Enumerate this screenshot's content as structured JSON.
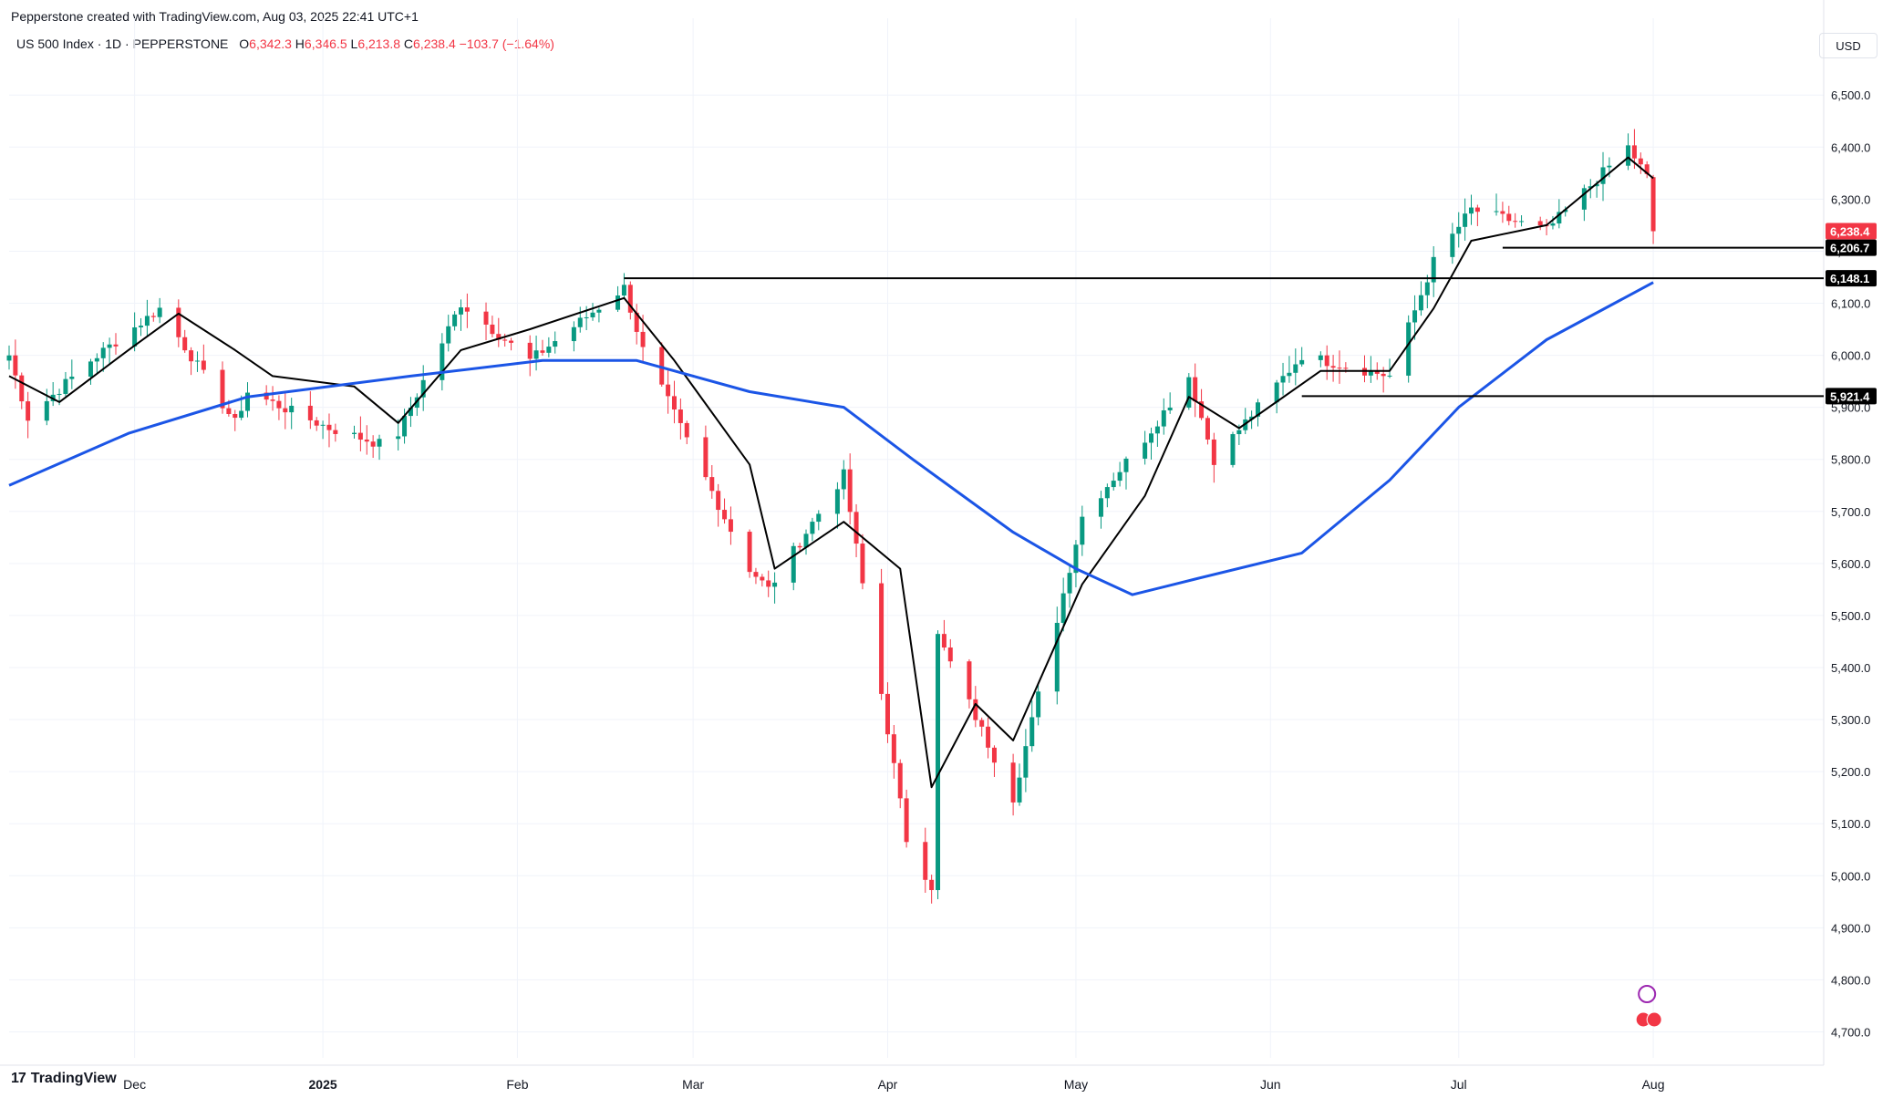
{
  "header": {
    "attribution": "Pepperstone created with TradingView.com, Aug 03, 2025 22:41 UTC+1"
  },
  "legend": {
    "symbol": "US 500 Index · 1D · PEPPERSTONE",
    "o_label": "O",
    "o_value": "6,342.3",
    "h_label": "H",
    "h_value": "6,346.5",
    "l_label": "L",
    "l_value": "6,213.8",
    "c_label": "C",
    "c_value": "6,238.4",
    "change": "−103.7 (−1.64%)"
  },
  "currency": "USD",
  "footer": {
    "brand": "TradingView",
    "brand_mark": "17"
  },
  "colors": {
    "up": "#089981",
    "down": "#f23645",
    "ma_fast": "#000000",
    "ma_slow": "#1b55e6",
    "grid": "#f0f3fa",
    "level_line": "#000000",
    "last_price_tag": "#f23645"
  },
  "chart_data": {
    "type": "candlestick",
    "y_axis": {
      "range": [
        4650,
        6560
      ],
      "ticks": [
        4700,
        4800,
        4900,
        5000,
        5100,
        5200,
        5300,
        5400,
        5500,
        5600,
        5700,
        5800,
        5900,
        6000,
        6100,
        6200,
        6300,
        6400,
        6500
      ],
      "tick_labels": [
        "4,700.0",
        "4,800.0",
        "4,900.0",
        "5,000.0",
        "5,100.0",
        "5,200.0",
        "5,300.0",
        "5,400.0",
        "5,500.0",
        "5,600.0",
        "5,700.0",
        "5,800.0",
        "5,900.0",
        "6,000.0",
        "6,100.0",
        "6,200.0",
        "6,300.0",
        "6,400.0",
        "6,500.0"
      ]
    },
    "x_axis": {
      "range": [
        "2024-11-12",
        "2025-08-27"
      ],
      "ticks": [
        {
          "date": "2024-12-02",
          "label": "Dec",
          "bold": false
        },
        {
          "date": "2025-01-01",
          "label": "2025",
          "bold": true
        },
        {
          "date": "2025-02-01",
          "label": "Feb",
          "bold": false
        },
        {
          "date": "2025-03-01",
          "label": "Mar",
          "bold": false
        },
        {
          "date": "2025-04-01",
          "label": "Apr",
          "bold": false
        },
        {
          "date": "2025-05-01",
          "label": "May",
          "bold": false
        },
        {
          "date": "2025-06-01",
          "label": "Jun",
          "bold": false
        },
        {
          "date": "2025-07-01",
          "label": "Jul",
          "bold": false
        },
        {
          "date": "2025-08-01",
          "label": "Aug",
          "bold": false
        }
      ]
    },
    "key_points": [
      {
        "date": "2024-11-12",
        "close": 6000
      },
      {
        "date": "2024-11-15",
        "close": 5880
      },
      {
        "date": "2024-11-25",
        "close": 5990
      },
      {
        "date": "2024-12-06",
        "close": 6090
      },
      {
        "date": "2024-12-18",
        "close": 5870
      },
      {
        "date": "2024-12-20",
        "close": 5930
      },
      {
        "date": "2025-01-02",
        "close": 5860
      },
      {
        "date": "2025-01-10",
        "close": 5830
      },
      {
        "date": "2025-01-13",
        "close": 5850
      },
      {
        "date": "2025-01-23",
        "close": 6100
      },
      {
        "date": "2025-02-03",
        "close": 5990
      },
      {
        "date": "2025-02-18",
        "close": 6130
      },
      {
        "date": "2025-02-21",
        "close": 6010
      },
      {
        "date": "2025-03-10",
        "close": 5590
      },
      {
        "date": "2025-03-13",
        "close": 5550
      },
      {
        "date": "2025-03-25",
        "close": 5770
      },
      {
        "date": "2025-04-04",
        "close": 5070
      },
      {
        "date": "2025-04-08",
        "close": 4980
      },
      {
        "date": "2025-04-09",
        "close": 5460
      },
      {
        "date": "2025-04-21",
        "close": 5150
      },
      {
        "date": "2025-05-02",
        "close": 5690
      },
      {
        "date": "2025-05-12",
        "close": 5840
      },
      {
        "date": "2025-05-19",
        "close": 5960
      },
      {
        "date": "2025-05-23",
        "close": 5800
      },
      {
        "date": "2025-06-06",
        "close": 6000
      },
      {
        "date": "2025-06-13",
        "close": 5980
      },
      {
        "date": "2025-06-20",
        "close": 5960
      },
      {
        "date": "2025-06-27",
        "close": 6180
      },
      {
        "date": "2025-07-03",
        "close": 6280
      },
      {
        "date": "2025-07-15",
        "close": 6240
      },
      {
        "date": "2025-07-28",
        "close": 6400
      },
      {
        "date": "2025-07-31",
        "close": 6342
      },
      {
        "date": "2025-08-01",
        "open": 6342.3,
        "high": 6346.5,
        "low": 6213.8,
        "close": 6238.4
      }
    ],
    "moving_averages": [
      {
        "name": "fast",
        "color": "#000000",
        "points": [
          [
            "2024-11-12",
            5960
          ],
          [
            "2024-11-20",
            5910
          ],
          [
            "2024-12-01",
            6010
          ],
          [
            "2024-12-09",
            6080
          ],
          [
            "2024-12-18",
            6010
          ],
          [
            "2024-12-24",
            5960
          ],
          [
            "2025-01-06",
            5940
          ],
          [
            "2025-01-13",
            5870
          ],
          [
            "2025-01-23",
            6010
          ],
          [
            "2025-02-03",
            6050
          ],
          [
            "2025-02-18",
            6110
          ],
          [
            "2025-02-26",
            5990
          ],
          [
            "2025-03-10",
            5790
          ],
          [
            "2025-03-14",
            5590
          ],
          [
            "2025-03-25",
            5680
          ],
          [
            "2025-04-03",
            5590
          ],
          [
            "2025-04-08",
            5170
          ],
          [
            "2025-04-15",
            5330
          ],
          [
            "2025-04-21",
            5260
          ],
          [
            "2025-05-02",
            5560
          ],
          [
            "2025-05-12",
            5730
          ],
          [
            "2025-05-19",
            5920
          ],
          [
            "2025-05-27",
            5860
          ],
          [
            "2025-06-09",
            5970
          ],
          [
            "2025-06-20",
            5970
          ],
          [
            "2025-06-27",
            6090
          ],
          [
            "2025-07-03",
            6220
          ],
          [
            "2025-07-15",
            6250
          ],
          [
            "2025-07-28",
            6380
          ],
          [
            "2025-08-01",
            6340
          ]
        ]
      },
      {
        "name": "slow",
        "color": "#1b55e6",
        "points": [
          [
            "2024-11-12",
            5750
          ],
          [
            "2024-12-01",
            5850
          ],
          [
            "2024-12-20",
            5920
          ],
          [
            "2025-01-15",
            5960
          ],
          [
            "2025-02-05",
            5990
          ],
          [
            "2025-02-20",
            5990
          ],
          [
            "2025-03-10",
            5930
          ],
          [
            "2025-03-25",
            5900
          ],
          [
            "2025-04-05",
            5800
          ],
          [
            "2025-04-21",
            5660
          ],
          [
            "2025-05-01",
            5590
          ],
          [
            "2025-05-10",
            5540
          ],
          [
            "2025-05-20",
            5570
          ],
          [
            "2025-06-06",
            5620
          ],
          [
            "2025-06-20",
            5760
          ],
          [
            "2025-07-01",
            5900
          ],
          [
            "2025-07-15",
            6030
          ],
          [
            "2025-08-01",
            6140
          ]
        ]
      }
    ],
    "horizontal_levels": [
      {
        "price": 6206.7,
        "label": "6,206.7",
        "from": "2025-07-08",
        "to": "2025-08-27"
      },
      {
        "price": 6148.1,
        "label": "6,148.1",
        "from": "2025-02-18",
        "to": "2025-08-27"
      },
      {
        "price": 5921.4,
        "label": "5,921.4",
        "from": "2025-06-06",
        "to": "2025-08-27"
      }
    ],
    "last_price": {
      "price": 6238.4,
      "label": "6,238.4"
    }
  }
}
